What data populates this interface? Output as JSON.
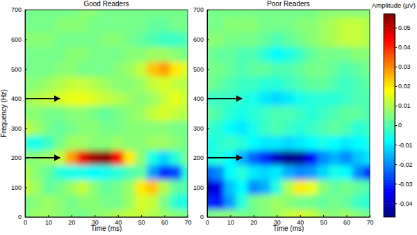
{
  "chart_data": [
    {
      "type": "heatmap",
      "title": "Good Readers",
      "x_label": "Time (ms)",
      "y_label": "Frequency (Hz)",
      "xlim": [
        0,
        70
      ],
      "ylim": [
        0,
        700
      ],
      "xticks": [
        0,
        10,
        20,
        30,
        40,
        50,
        60,
        70
      ],
      "yticks": [
        0,
        100,
        200,
        300,
        400,
        500,
        600,
        700
      ],
      "x": [
        0,
        5,
        10,
        15,
        20,
        25,
        30,
        35,
        40,
        45,
        50,
        55,
        60,
        65,
        70
      ],
      "y": [
        0,
        50,
        100,
        150,
        200,
        250,
        300,
        350,
        400,
        450,
        500,
        550,
        600,
        650,
        700
      ],
      "arrows": [
        {
          "x": [
            0,
            15
          ],
          "y": 400
        },
        {
          "x": [
            0,
            15
          ],
          "y": 200
        }
      ],
      "values": [
        [
          0.005,
          0.008,
          0.008,
          0.006,
          0.005,
          0.004,
          0.006,
          0.008,
          0.01,
          0.012,
          0.012,
          0.01,
          0.008,
          0.006,
          0.005
        ],
        [
          0.004,
          0.006,
          0.008,
          0.006,
          0.004,
          0.006,
          0.006,
          0.004,
          0.004,
          0.008,
          0.014,
          0.012,
          0.004,
          -0.004,
          -0.006
        ],
        [
          0.012,
          0.008,
          0.002,
          0.004,
          0.008,
          0.012,
          0.006,
          0.002,
          0.004,
          0.008,
          0.02,
          0.024,
          0.01,
          0.002,
          0.0
        ],
        [
          0.01,
          0.006,
          0.002,
          -0.004,
          -0.006,
          -0.006,
          -0.008,
          -0.006,
          -0.004,
          0.0,
          0.002,
          -0.018,
          -0.03,
          -0.026,
          -0.004
        ],
        [
          0.006,
          0.006,
          0.008,
          0.012,
          0.028,
          0.046,
          0.054,
          0.056,
          0.044,
          0.02,
          0.006,
          -0.006,
          -0.012,
          -0.004,
          0.004
        ],
        [
          -0.004,
          -0.006,
          -0.002,
          0.004,
          0.008,
          0.008,
          0.006,
          0.006,
          0.008,
          0.006,
          0.006,
          0.008,
          0.008,
          0.006,
          0.004
        ],
        [
          0.012,
          0.008,
          0.004,
          0.002,
          0.004,
          0.006,
          0.006,
          0.004,
          0.004,
          0.006,
          0.006,
          0.006,
          0.006,
          0.004,
          0.004
        ],
        [
          0.006,
          0.006,
          0.004,
          0.004,
          0.006,
          0.006,
          0.004,
          0.002,
          0.004,
          0.006,
          0.008,
          0.012,
          0.014,
          0.012,
          0.01
        ],
        [
          0.008,
          0.01,
          0.012,
          0.014,
          0.016,
          0.016,
          0.014,
          0.012,
          0.01,
          0.008,
          0.006,
          0.008,
          0.012,
          0.016,
          0.012
        ],
        [
          0.006,
          0.006,
          0.008,
          0.01,
          0.012,
          0.012,
          0.01,
          0.008,
          0.006,
          0.006,
          0.008,
          0.012,
          0.014,
          0.012,
          0.01
        ],
        [
          0.004,
          0.004,
          0.004,
          0.006,
          0.006,
          0.004,
          0.004,
          0.004,
          0.006,
          0.008,
          0.012,
          0.024,
          0.028,
          0.02,
          0.014
        ],
        [
          0.004,
          0.004,
          0.004,
          0.004,
          0.006,
          0.006,
          0.004,
          0.004,
          0.004,
          0.006,
          0.006,
          0.008,
          0.008,
          0.006,
          0.004
        ],
        [
          0.006,
          0.006,
          0.006,
          0.004,
          0.004,
          0.004,
          0.004,
          0.006,
          0.006,
          0.004,
          0.002,
          0.0,
          -0.002,
          -0.002,
          0.0
        ],
        [
          0.004,
          0.004,
          0.004,
          0.006,
          0.006,
          0.006,
          0.004,
          0.004,
          0.004,
          0.004,
          0.004,
          0.002,
          0.002,
          0.004,
          0.004
        ],
        [
          0.004,
          0.004,
          0.004,
          0.004,
          0.004,
          0.006,
          0.006,
          0.004,
          0.004,
          0.004,
          0.004,
          0.004,
          0.004,
          0.004,
          0.004
        ]
      ]
    },
    {
      "type": "heatmap",
      "title": "Poor Readers",
      "x_label": "Time (ms)",
      "xlim": [
        0,
        70
      ],
      "ylim": [
        0,
        700
      ],
      "xticks": [
        0,
        10,
        20,
        30,
        40,
        50,
        60,
        70
      ],
      "yticks": [
        0,
        100,
        200,
        300,
        400,
        500,
        600,
        700
      ],
      "x": [
        0,
        5,
        10,
        15,
        20,
        25,
        30,
        35,
        40,
        45,
        50,
        55,
        60,
        65,
        70
      ],
      "y": [
        0,
        50,
        100,
        150,
        200,
        250,
        300,
        350,
        400,
        450,
        500,
        550,
        600,
        650,
        700
      ],
      "arrows": [
        {
          "x": [
            0,
            15
          ],
          "y": 400
        },
        {
          "x": [
            0,
            15
          ],
          "y": 200
        }
      ],
      "values": [
        [
          0.004,
          0.006,
          0.006,
          0.004,
          0.004,
          0.006,
          0.008,
          0.012,
          0.014,
          0.012,
          0.008,
          0.006,
          0.008,
          0.006,
          0.004
        ],
        [
          -0.03,
          -0.032,
          -0.018,
          -0.004,
          0.004,
          0.006,
          0.008,
          0.006,
          0.004,
          0.004,
          0.002,
          0.004,
          0.002,
          -0.002,
          -0.004
        ],
        [
          -0.04,
          -0.036,
          -0.014,
          -0.008,
          -0.02,
          -0.016,
          -0.004,
          0.01,
          0.02,
          0.016,
          0.006,
          0.002,
          0.004,
          0.002,
          0.0
        ],
        [
          -0.024,
          -0.02,
          -0.008,
          -0.004,
          -0.01,
          -0.012,
          -0.01,
          -0.016,
          -0.02,
          -0.018,
          -0.012,
          -0.006,
          -0.008,
          -0.02,
          -0.03
        ],
        [
          -0.006,
          -0.004,
          -0.008,
          -0.016,
          -0.024,
          -0.03,
          -0.04,
          -0.046,
          -0.044,
          -0.034,
          -0.02,
          -0.016,
          -0.02,
          -0.014,
          -0.01
        ],
        [
          -0.006,
          -0.004,
          -0.002,
          -0.004,
          -0.008,
          -0.01,
          -0.01,
          -0.012,
          -0.01,
          -0.008,
          -0.006,
          -0.008,
          -0.01,
          -0.008,
          -0.006
        ],
        [
          -0.002,
          -0.004,
          -0.008,
          -0.01,
          -0.006,
          -0.002,
          0.0,
          -0.002,
          -0.004,
          -0.002,
          0.0,
          0.002,
          0.0,
          -0.004,
          -0.002
        ],
        [
          0.002,
          0.0,
          -0.004,
          -0.006,
          -0.004,
          -0.002,
          0.0,
          0.0,
          -0.002,
          -0.004,
          -0.002,
          0.0,
          0.002,
          0.002,
          0.0
        ],
        [
          -0.002,
          -0.002,
          -0.002,
          -0.004,
          -0.006,
          -0.01,
          -0.012,
          -0.01,
          -0.006,
          -0.004,
          -0.004,
          -0.004,
          -0.002,
          0.0,
          0.0
        ],
        [
          0.004,
          0.002,
          0.0,
          -0.002,
          -0.002,
          -0.004,
          -0.004,
          -0.002,
          0.0,
          0.002,
          0.002,
          0.0,
          -0.002,
          0.0,
          0.002
        ],
        [
          0.004,
          0.004,
          0.002,
          0.0,
          0.002,
          0.002,
          0.0,
          0.0,
          0.002,
          0.004,
          0.004,
          0.002,
          0.0,
          0.002,
          0.004
        ],
        [
          0.004,
          0.002,
          0.002,
          0.0,
          0.0,
          -0.004,
          -0.008,
          -0.006,
          -0.002,
          0.002,
          0.004,
          0.004,
          0.004,
          0.006,
          0.006
        ],
        [
          0.006,
          0.006,
          0.004,
          0.004,
          0.004,
          0.002,
          0.0,
          0.002,
          0.004,
          0.006,
          0.008,
          0.01,
          0.012,
          0.012,
          0.01
        ],
        [
          0.004,
          0.004,
          0.006,
          0.006,
          0.006,
          0.004,
          0.004,
          0.004,
          0.006,
          0.006,
          0.008,
          0.01,
          0.012,
          0.012,
          0.01
        ],
        [
          0.004,
          0.004,
          0.004,
          0.004,
          0.004,
          0.004,
          0.004,
          0.004,
          0.004,
          0.004,
          0.006,
          0.006,
          0.006,
          0.006,
          0.006
        ]
      ],
      "colorbar": {
        "label": "Amplitude (µV)",
        "range": [
          -0.047,
          0.057
        ],
        "ticks": [
          -0.04,
          -0.03,
          -0.02,
          -0.01,
          0,
          0.01,
          0.02,
          0.03,
          0.04,
          0.05
        ]
      }
    }
  ]
}
